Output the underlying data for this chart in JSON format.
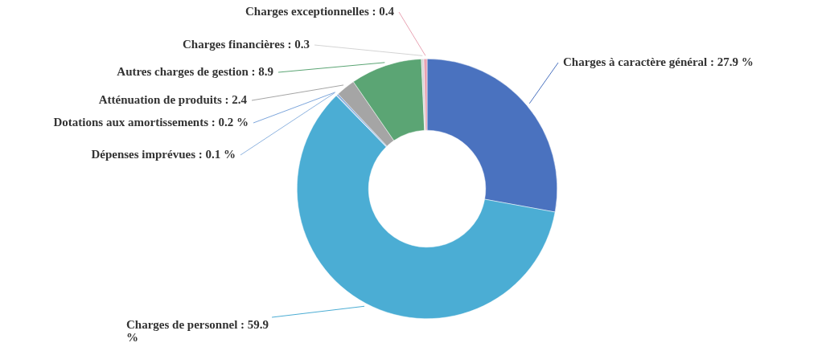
{
  "chart_data": {
    "type": "donut",
    "categories": [
      "Charges à caractère général",
      "Charges de personnel",
      "Dépenses imprévues",
      "Dotations aux amortissements",
      "Atténuation de produits",
      "Autres charges de gestion",
      "Charges financières",
      "Charges exceptionnelles"
    ],
    "values": [
      27.9,
      59.9,
      0.1,
      0.2,
      2.4,
      8.9,
      0.3,
      0.4
    ],
    "colors": [
      "#4a72bf",
      "#4badd4",
      "#8fb4e0",
      "#7da6dc",
      "#a5a5a5",
      "#5ba574",
      "#d4d4d4",
      "#e8a3b3"
    ],
    "value_labels": [
      "27.9 %",
      "59.9 %",
      "0.1 %",
      "0.2 %",
      "2.4",
      "8.9",
      "0.3",
      "0.4"
    ],
    "legend": false
  }
}
